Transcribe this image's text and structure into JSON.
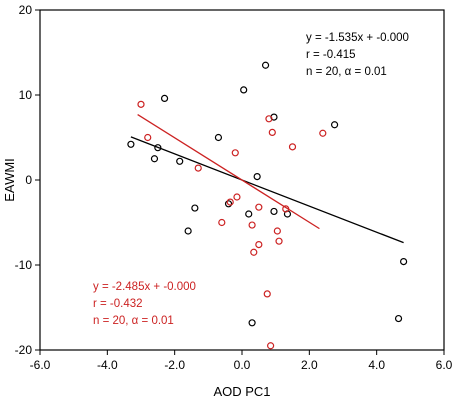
{
  "chart_data": {
    "type": "scatter",
    "title": "",
    "xlabel": "AOD PC1",
    "ylabel": "EAWMI",
    "xlim": [
      -6.0,
      6.0
    ],
    "ylim": [
      -20,
      20
    ],
    "x_ticks": [
      "-6.0",
      "-4.0",
      "-2.0",
      "0.0",
      "2.0",
      "4.0",
      "6.0"
    ],
    "y_ticks": [
      "-20",
      "-10",
      "0",
      "10",
      "20"
    ],
    "grid": false,
    "series": [
      {
        "color": "#000000",
        "marker": "open-circle",
        "points": [
          [
            -3.3,
            4.2
          ],
          [
            -2.5,
            3.8
          ],
          [
            -2.6,
            2.5
          ],
          [
            -1.85,
            2.2
          ],
          [
            -2.3,
            9.6
          ],
          [
            -0.7,
            5.0
          ],
          [
            0.7,
            13.5
          ],
          [
            0.05,
            10.6
          ],
          [
            0.95,
            7.4
          ],
          [
            2.75,
            6.5
          ],
          [
            -1.4,
            -3.3
          ],
          [
            -1.6,
            -6.0
          ],
          [
            -0.4,
            -2.8
          ],
          [
            0.2,
            -4.0
          ],
          [
            0.45,
            0.4
          ],
          [
            0.95,
            -3.7
          ],
          [
            1.35,
            -4.0
          ],
          [
            0.3,
            -16.8
          ],
          [
            4.65,
            -16.3
          ],
          [
            4.8,
            -9.6
          ]
        ],
        "fit_line": {
          "x": [
            -3.3,
            4.8
          ],
          "y": [
            5.07,
            -7.37
          ]
        }
      },
      {
        "color": "#cc2222",
        "marker": "open-circle",
        "points": [
          [
            -3.0,
            8.9
          ],
          [
            -2.8,
            5.0
          ],
          [
            -1.3,
            1.4
          ],
          [
            -0.2,
            3.2
          ],
          [
            0.8,
            7.2
          ],
          [
            0.9,
            5.6
          ],
          [
            1.5,
            3.9
          ],
          [
            2.4,
            5.5
          ],
          [
            -0.35,
            -2.6
          ],
          [
            -0.15,
            -2.0
          ],
          [
            -0.6,
            -5.0
          ],
          [
            0.3,
            -5.3
          ],
          [
            0.5,
            -3.2
          ],
          [
            1.3,
            -3.4
          ],
          [
            1.05,
            -6.0
          ],
          [
            1.1,
            -7.2
          ],
          [
            0.5,
            -7.6
          ],
          [
            0.35,
            -8.5
          ],
          [
            0.75,
            -13.4
          ],
          [
            0.85,
            -19.5
          ]
        ],
        "fit_line": {
          "x": [
            -3.1,
            2.3
          ],
          "y": [
            7.7,
            -5.72
          ]
        }
      }
    ],
    "annotations": [
      {
        "color": "#000000",
        "lines": [
          "y = -1.535x + -0.000",
          "r = -0.415",
          "n = 20, α = 0.01"
        ]
      },
      {
        "color": "#cc2222",
        "lines": [
          "y = -2.485x + -0.000",
          "r = -0.432",
          "n = 20, α = 0.01"
        ]
      }
    ]
  }
}
